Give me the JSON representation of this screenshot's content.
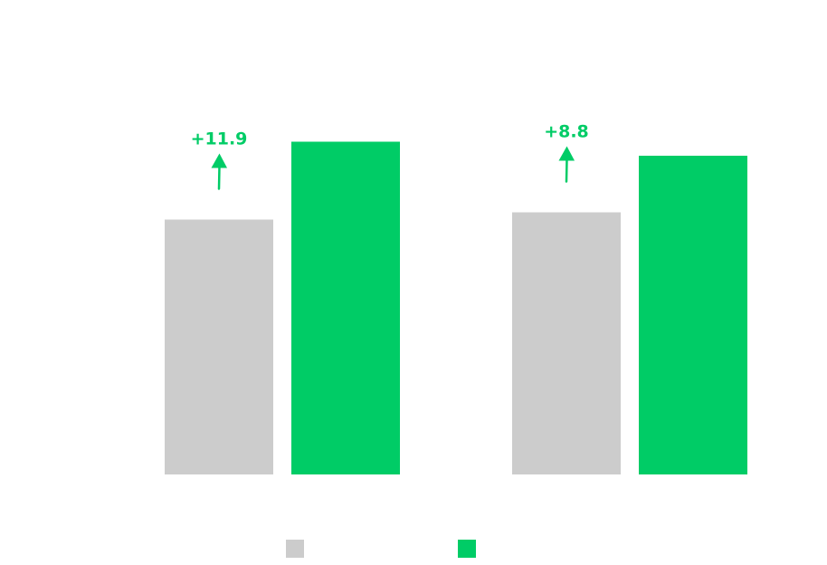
{
  "chart_data": {
    "type": "bar",
    "title": "",
    "xlabel": "",
    "ylabel": "",
    "ylim": [
      0,
      100
    ],
    "grid": false,
    "legend_position": "bottom",
    "categories": [
      "",
      ""
    ],
    "series": [
      {
        "color": "#cccccc",
        "values": [
          56.3,
          57.9
        ]
      },
      {
        "color": "#00cc66",
        "values": [
          73.5,
          70.4
        ]
      }
    ],
    "annotations": [
      {
        "category_index": 0,
        "text": "+11.9",
        "color": "#00cc66"
      },
      {
        "category_index": 1,
        "text": "+8.8",
        "color": "#00cc66"
      }
    ]
  }
}
